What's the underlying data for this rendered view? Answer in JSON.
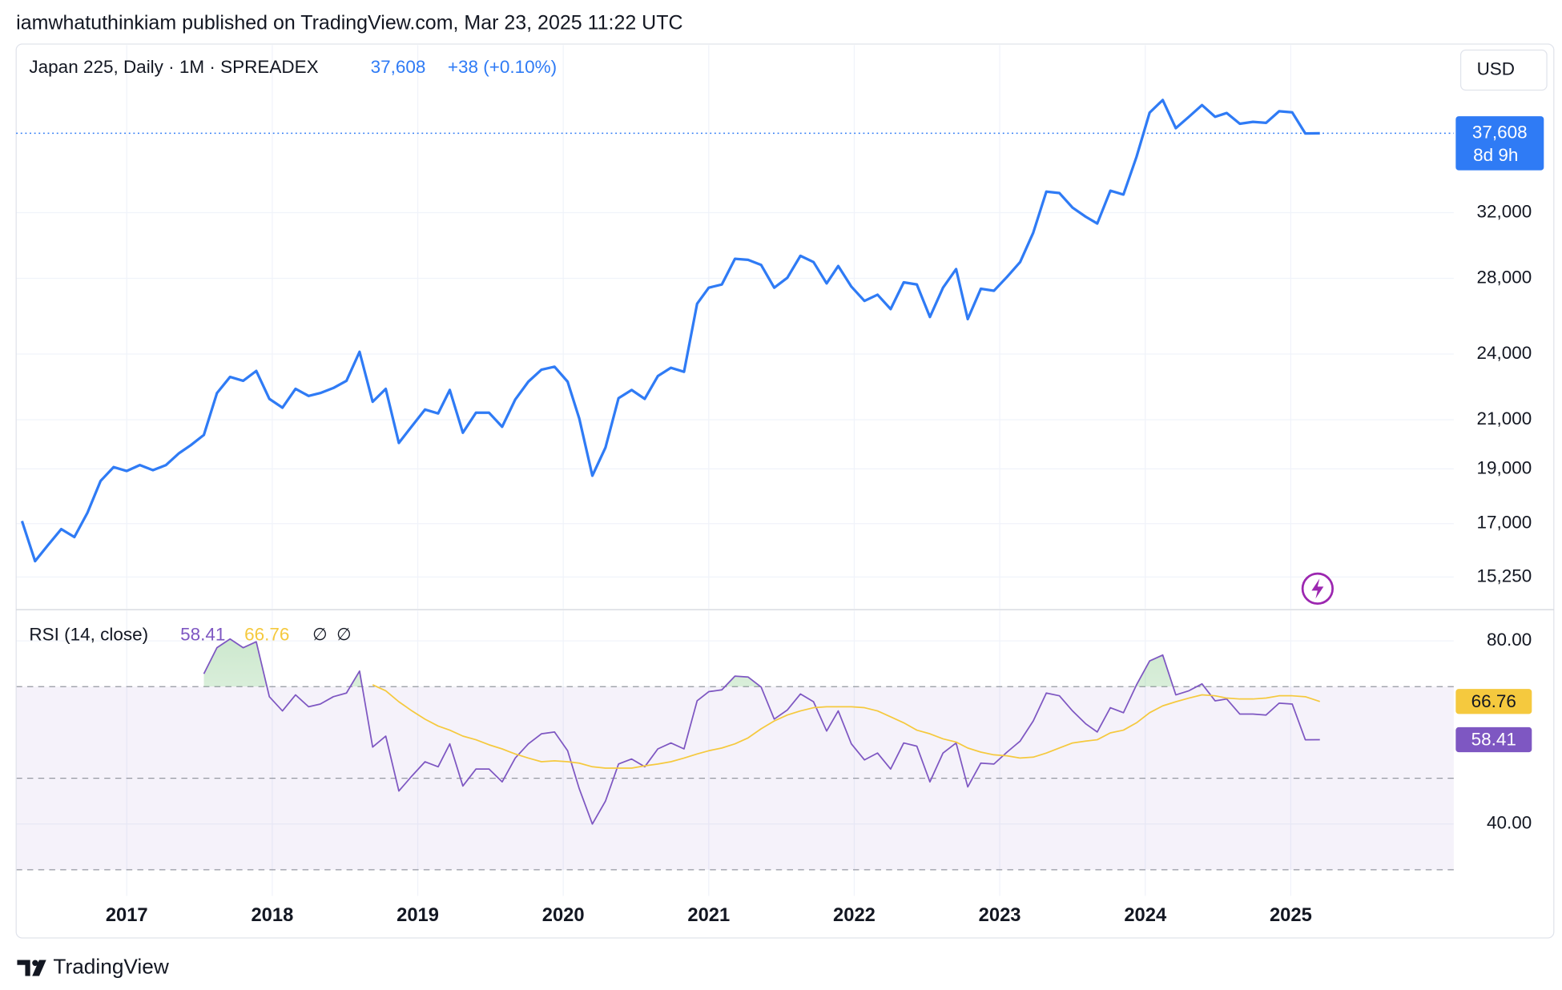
{
  "header": "iamwhatuthinkiam published on TradingView.com, Mar 23, 2025 11:22 UTC",
  "footer": "TradingView",
  "currency": "USD",
  "chart_data": [
    {
      "type": "line",
      "title": "Japan 225, Daily · 1M · SPREADEX",
      "last_price": {
        "value": 37608,
        "label": "37,608"
      },
      "change": "+38 (+0.10%)",
      "countdown": "8d 9h",
      "log_scale": true,
      "grid": true,
      "color": "#2f7bf5",
      "xlim": [
        2016.24,
        2026.12
      ],
      "xticks": [
        2017,
        2018,
        2019,
        2020,
        2021,
        2022,
        2023,
        2024,
        2025
      ],
      "ylim": [
        14300,
        45000
      ],
      "yticks": [
        {
          "value": 15250,
          "label": "15,250"
        },
        {
          "value": 17000,
          "label": "17,000"
        },
        {
          "value": 19000,
          "label": "19,000"
        },
        {
          "value": 21000,
          "label": "21,000"
        },
        {
          "value": 24000,
          "label": "24,000"
        },
        {
          "value": 28000,
          "label": "28,000"
        },
        {
          "value": 32000,
          "label": "32,000"
        }
      ],
      "x": [
        2016.28,
        2016.37,
        2016.46,
        2016.55,
        2016.64,
        2016.73,
        2016.82,
        2016.91,
        2017.0,
        2017.09,
        2017.18,
        2017.27,
        2017.36,
        2017.44,
        2017.53,
        2017.62,
        2017.71,
        2017.8,
        2017.89,
        2017.98,
        2018.07,
        2018.16,
        2018.25,
        2018.33,
        2018.42,
        2018.51,
        2018.6,
        2018.69,
        2018.78,
        2018.87,
        2018.96,
        2019.05,
        2019.14,
        2019.22,
        2019.31,
        2019.4,
        2019.49,
        2019.58,
        2019.67,
        2019.76,
        2019.85,
        2019.94,
        2020.03,
        2020.11,
        2020.2,
        2020.29,
        2020.38,
        2020.47,
        2020.56,
        2020.65,
        2020.74,
        2020.83,
        2020.92,
        2021.0,
        2021.09,
        2021.18,
        2021.27,
        2021.36,
        2021.45,
        2021.54,
        2021.63,
        2021.72,
        2021.81,
        2021.89,
        2021.98,
        2022.07,
        2022.16,
        2022.25,
        2022.34,
        2022.43,
        2022.52,
        2022.61,
        2022.7,
        2022.78,
        2022.87,
        2022.96,
        2023.05,
        2023.14,
        2023.23,
        2023.32,
        2023.41,
        2023.5,
        2023.59,
        2023.67,
        2023.76,
        2023.85,
        2023.94,
        2024.03,
        2024.12,
        2024.21,
        2024.3,
        2024.39,
        2024.48,
        2024.56,
        2024.65,
        2024.74,
        2024.83,
        2024.92,
        2025.01,
        2025.1,
        2025.2
      ],
      "series": [
        {
          "color": "#2f7bf5",
          "values": [
            17090,
            15750,
            16280,
            16810,
            16540,
            17380,
            18540,
            19070,
            18920,
            19150,
            18950,
            19150,
            19620,
            19940,
            20360,
            22170,
            22910,
            22730,
            23190,
            21910,
            21520,
            22360,
            22040,
            22170,
            22400,
            22730,
            24110,
            21780,
            22360,
            20030,
            20730,
            21440,
            21270,
            22310,
            20450,
            21300,
            21300,
            20700,
            21880,
            22690,
            23250,
            23390,
            22690,
            21050,
            18740,
            19840,
            21940,
            22310,
            21910,
            22950,
            23340,
            23150,
            26590,
            27470,
            27650,
            29130,
            29070,
            28770,
            27470,
            28030,
            29310,
            28940,
            27710,
            28710,
            27530,
            26740,
            27080,
            26300,
            27770,
            27650,
            25880,
            27470,
            28530,
            25770,
            27410,
            27300,
            28080,
            28940,
            30720,
            33400,
            33300,
            32330,
            31740,
            31300,
            33460,
            33200,
            35850,
            39220,
            40240,
            38000,
            38890,
            39830,
            38890,
            39190,
            38340,
            38490,
            38410,
            39330,
            39240,
            37590,
            37608
          ]
        }
      ]
    },
    {
      "type": "line",
      "title": "RSI (14, close)",
      "empty_values": [
        "∅",
        "∅"
      ],
      "grid": true,
      "xlim": [
        2016.24,
        2026.12
      ],
      "xticks": [
        2017,
        2018,
        2019,
        2020,
        2021,
        2022,
        2023,
        2024,
        2025
      ],
      "ylim": [
        24.3,
        86.6
      ],
      "yticks": [
        {
          "value": 40,
          "label": "40.00"
        },
        {
          "value": 80,
          "label": "80.00"
        }
      ],
      "bands": [
        70,
        50,
        30
      ],
      "x": [
        2016.28,
        2016.37,
        2016.46,
        2016.55,
        2016.64,
        2016.73,
        2016.82,
        2016.91,
        2017.0,
        2017.09,
        2017.18,
        2017.27,
        2017.36,
        2017.44,
        2017.53,
        2017.62,
        2017.71,
        2017.8,
        2017.89,
        2017.98,
        2018.07,
        2018.16,
        2018.25,
        2018.33,
        2018.42,
        2018.51,
        2018.6,
        2018.69,
        2018.78,
        2018.87,
        2018.96,
        2019.05,
        2019.14,
        2019.22,
        2019.31,
        2019.4,
        2019.49,
        2019.58,
        2019.67,
        2019.76,
        2019.85,
        2019.94,
        2020.03,
        2020.11,
        2020.2,
        2020.29,
        2020.38,
        2020.47,
        2020.56,
        2020.65,
        2020.74,
        2020.83,
        2020.92,
        2021.0,
        2021.09,
        2021.18,
        2021.27,
        2021.36,
        2021.45,
        2021.54,
        2021.63,
        2021.72,
        2021.81,
        2021.89,
        2021.98,
        2022.07,
        2022.16,
        2022.25,
        2022.34,
        2022.43,
        2022.52,
        2022.61,
        2022.7,
        2022.78,
        2022.87,
        2022.96,
        2023.05,
        2023.14,
        2023.23,
        2023.32,
        2023.41,
        2023.5,
        2023.59,
        2023.67,
        2023.76,
        2023.85,
        2023.94,
        2024.03,
        2024.12,
        2024.21,
        2024.3,
        2024.39,
        2024.48,
        2024.56,
        2024.65,
        2024.74,
        2024.83,
        2024.92,
        2025.01,
        2025.1,
        2025.2
      ],
      "series": [
        {
          "color": "#7e57c2",
          "values": [
            null,
            null,
            null,
            null,
            null,
            null,
            null,
            null,
            null,
            null,
            null,
            null,
            null,
            null,
            72.8,
            78.5,
            80.4,
            78.5,
            79.8,
            67.8,
            64.7,
            68.2,
            65.6,
            66.2,
            67.8,
            68.6,
            73.4,
            56.8,
            59.2,
            47.2,
            50.5,
            53.6,
            52.5,
            57.5,
            48.3,
            52.0,
            52.0,
            49.2,
            54.4,
            57.5,
            59.7,
            60.1,
            56.0,
            47.7,
            40.0,
            45.0,
            53.1,
            54.2,
            52.5,
            56.4,
            57.7,
            56.4,
            66.9,
            68.9,
            69.3,
            72.3,
            72.1,
            69.9,
            62.9,
            64.9,
            68.4,
            66.7,
            60.3,
            64.7,
            57.5,
            54.0,
            55.5,
            52.0,
            57.7,
            57.0,
            49.2,
            55.5,
            57.7,
            48.1,
            53.3,
            53.1,
            55.7,
            58.1,
            62.5,
            68.6,
            68.0,
            64.7,
            61.9,
            60.1,
            65.4,
            64.3,
            70.4,
            75.6,
            76.9,
            68.2,
            69.1,
            70.6,
            66.9,
            67.3,
            64.0,
            64.0,
            63.8,
            66.4,
            66.2,
            58.4,
            58.41
          ]
        },
        {
          "color": "#f5c93e",
          "values": [
            null,
            null,
            null,
            null,
            null,
            null,
            null,
            null,
            null,
            null,
            null,
            null,
            null,
            null,
            null,
            null,
            null,
            null,
            null,
            null,
            null,
            null,
            null,
            null,
            null,
            null,
            null,
            70.4,
            69.1,
            66.7,
            64.7,
            62.9,
            61.4,
            60.5,
            59.2,
            58.4,
            57.3,
            56.4,
            55.3,
            54.4,
            53.6,
            53.8,
            53.6,
            53.3,
            52.5,
            52.2,
            52.2,
            52.2,
            52.7,
            53.1,
            53.6,
            54.4,
            55.3,
            56.0,
            56.6,
            57.5,
            58.8,
            60.8,
            62.5,
            63.8,
            64.7,
            65.4,
            65.6,
            65.6,
            65.6,
            65.4,
            64.7,
            63.4,
            62.1,
            60.5,
            59.7,
            58.6,
            57.9,
            56.6,
            55.7,
            55.1,
            54.9,
            54.4,
            54.6,
            55.5,
            56.6,
            57.7,
            58.1,
            58.4,
            59.9,
            60.5,
            62.1,
            64.3,
            65.8,
            66.7,
            67.5,
            68.2,
            68.0,
            67.5,
            67.3,
            67.3,
            67.5,
            68.0,
            68.0,
            67.8,
            66.76
          ]
        }
      ]
    }
  ]
}
